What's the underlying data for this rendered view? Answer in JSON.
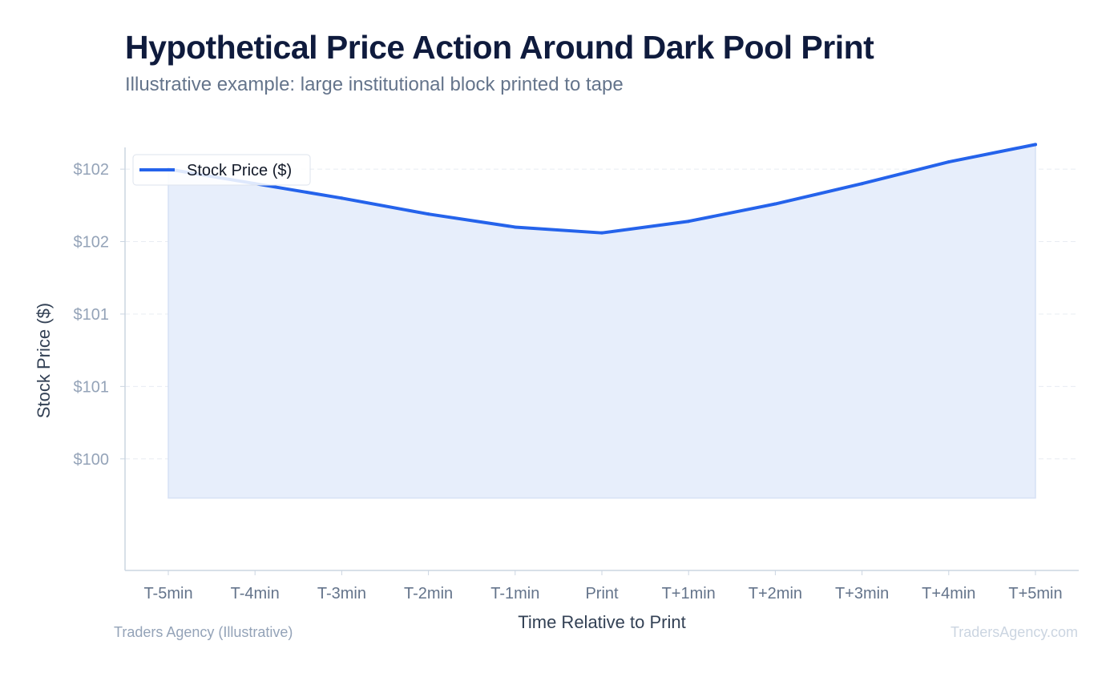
{
  "chart_data": {
    "type": "area",
    "title": "Hypothetical Price Action Around Dark Pool Print",
    "subtitle": "Illustrative example: large institutional block printed to tape",
    "xlabel": "Time Relative to Print",
    "ylabel": "Stock Price ($)",
    "categories": [
      "T-5min",
      "T-4min",
      "T-3min",
      "T-2min",
      "T-1min",
      "Print",
      "T+1min",
      "T+2min",
      "T+3min",
      "T+4min",
      "T+5min"
    ],
    "series": [
      {
        "name": "Stock Price ($)",
        "values": [
          102.0,
          101.9,
          101.8,
          101.69,
          101.6,
          101.56,
          101.64,
          101.76,
          101.9,
          102.05,
          102.17
        ],
        "color": "#2563eb",
        "fill": "#e7eefb"
      }
    ],
    "y_ticks": [
      100,
      100.5,
      101,
      101.5,
      102
    ],
    "y_tick_labels": [
      "$100",
      "$101",
      "$101",
      "$102",
      "$102"
    ],
    "ylim": [
      99.23,
      102.15
    ],
    "fill_baseline": 99.73,
    "grid": true,
    "legend_position": "top-left"
  },
  "footer": {
    "source": "Traders Agency (Illustrative)",
    "watermark": "TradersAgency.com"
  },
  "colors": {
    "title": "#0f1b3d",
    "subtitle": "#64748b",
    "line": "#2563eb",
    "area": "#e7eefb",
    "grid": "#e8ecf2",
    "axis": "#cbd5e1"
  }
}
